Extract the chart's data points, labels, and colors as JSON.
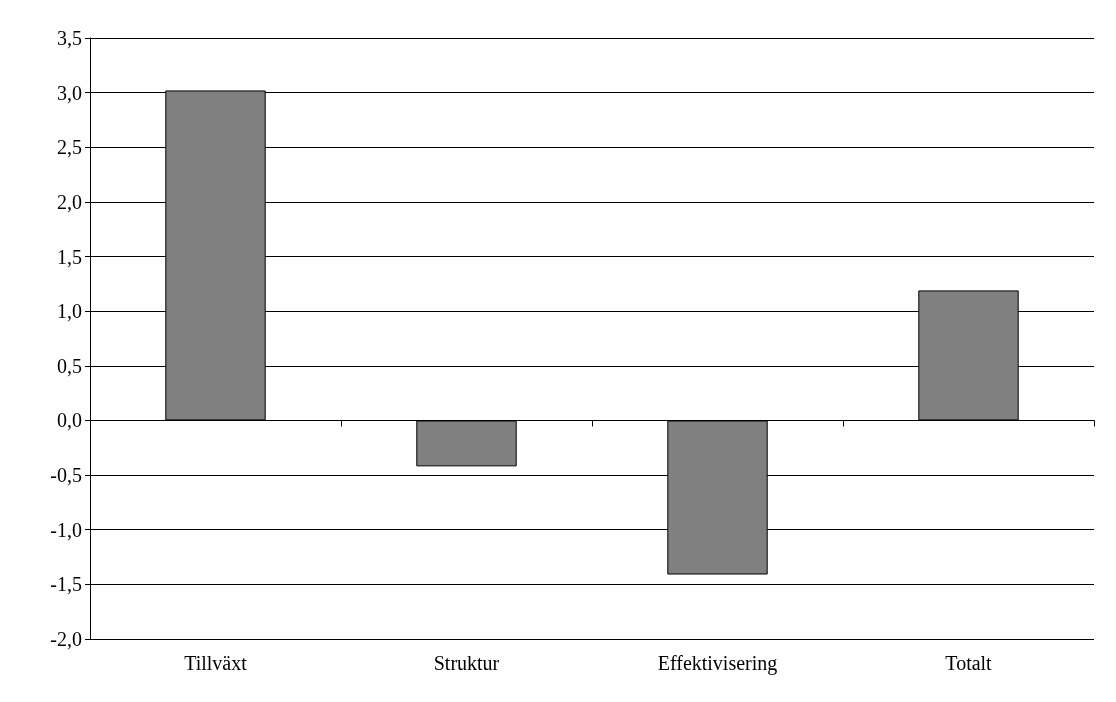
{
  "chart_data": {
    "type": "bar",
    "categories": [
      "Tillväxt",
      "Struktur",
      "Effektivisering",
      "Totalt"
    ],
    "values": [
      3.02,
      -0.42,
      -1.41,
      1.19
    ],
    "color": "#808080",
    "ylim": [
      -2,
      3.5
    ],
    "yticks": [
      {
        "value": -2,
        "label": "-2,0"
      },
      {
        "value": -1.5,
        "label": "-1,5"
      },
      {
        "value": -1,
        "label": "-1,0"
      },
      {
        "value": -0.5,
        "label": "-0,5"
      },
      {
        "value": 0,
        "label": "0,0"
      },
      {
        "value": 0.5,
        "label": "0,5"
      },
      {
        "value": 1,
        "label": "1,0"
      },
      {
        "value": 1.5,
        "label": "1,5"
      },
      {
        "value": 2,
        "label": "2,0"
      },
      {
        "value": 2.5,
        "label": "2,5"
      },
      {
        "value": 3,
        "label": "3,0"
      },
      {
        "value": 3.5,
        "label": "3,5"
      }
    ],
    "grid": "y"
  }
}
